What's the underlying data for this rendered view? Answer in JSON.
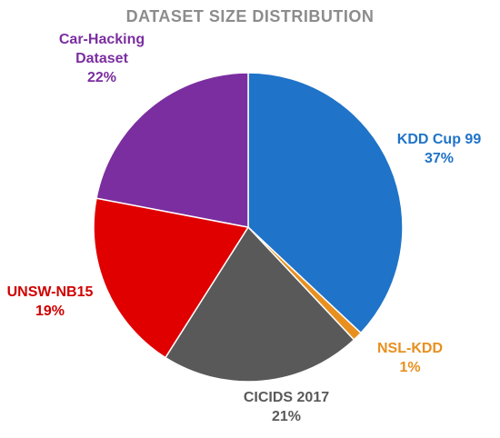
{
  "chart_data": {
    "type": "pie",
    "title": "DATASET SIZE DISTRIBUTION",
    "slices": [
      {
        "name": "KDD Cup 99",
        "value": 37,
        "pct_label": "37%",
        "color": "#1f73c8",
        "label_color": "#1f73c8"
      },
      {
        "name": "NSL-KDD",
        "value": 1,
        "pct_label": "1%",
        "color": "#e8901f",
        "label_color": "#e8901f"
      },
      {
        "name": "CICIDS 2017",
        "value": 21,
        "pct_label": "21%",
        "color": "#595959",
        "label_color": "#595959"
      },
      {
        "name": "UNSW-NB15",
        "value": 19,
        "pct_label": "19%",
        "color": "#e00000",
        "label_color": "#d00000"
      },
      {
        "name": "Car-Hacking Dataset",
        "name_lines": [
          "Car-Hacking",
          "Dataset"
        ],
        "value": 22,
        "pct_label": "22%",
        "color": "#7b2ea0",
        "label_color": "#7b2ea0"
      }
    ]
  }
}
